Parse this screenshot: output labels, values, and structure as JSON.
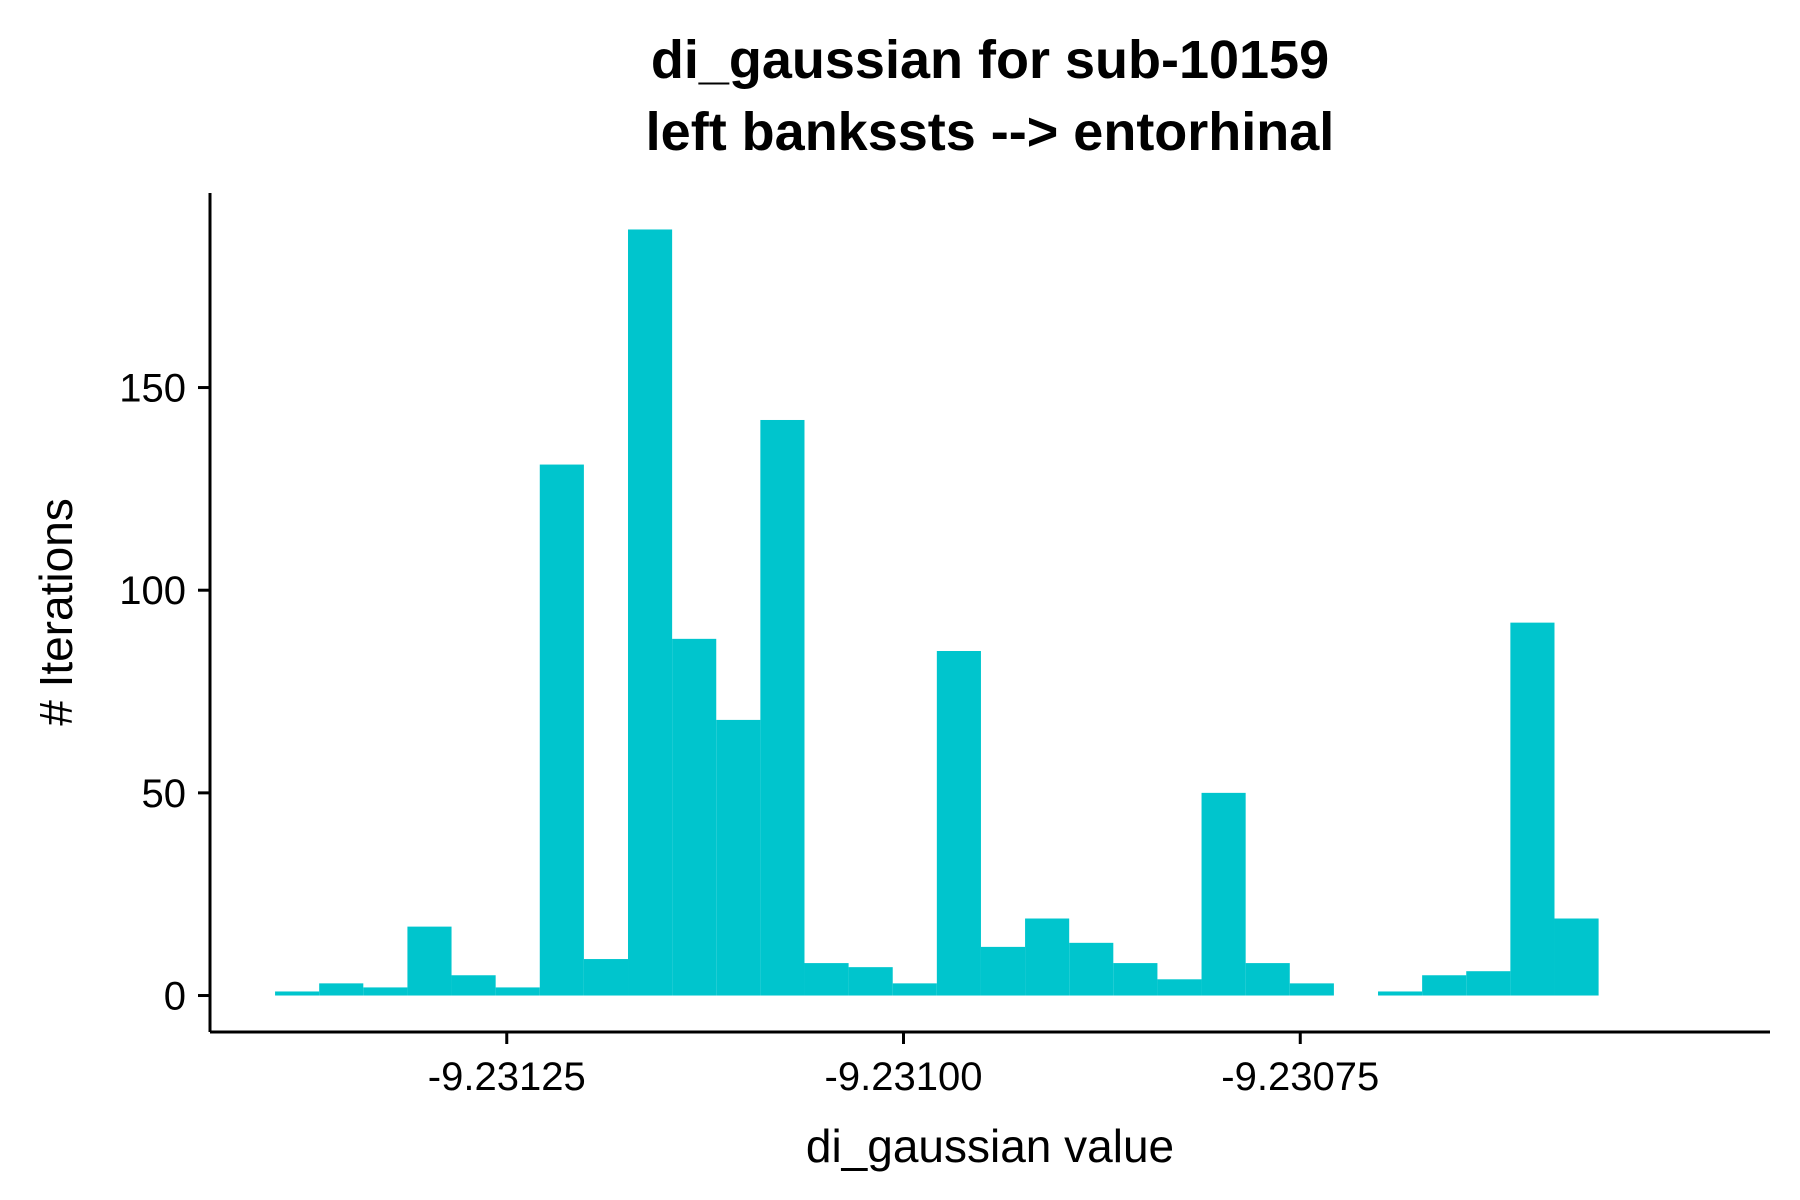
{
  "chart_data": {
    "type": "bar",
    "title_line1": "di_gaussian for sub-10159",
    "title_line2": "left bankssts --> entorhinal",
    "xlabel": "di_gaussian value",
    "ylabel": "# Iterations",
    "bar_color": "#00C5CD",
    "xlim": [
      -9.231437,
      -9.230454
    ],
    "ylim": [
      -9,
      198
    ],
    "x_ticks": [
      -9.23125,
      -9.231,
      -9.23075
    ],
    "x_tick_labels": [
      "-9.23125",
      "-9.23100",
      "-9.23075"
    ],
    "y_ticks": [
      0,
      50,
      100,
      150
    ],
    "y_tick_labels": [
      "0",
      "50",
      "100",
      "150"
    ],
    "bin_width": 2.78e-05,
    "bin_start": -9.231396,
    "values": [
      1,
      3,
      2,
      17,
      5,
      2,
      131,
      9,
      189,
      88,
      68,
      142,
      8,
      7,
      3,
      85,
      12,
      19,
      13,
      8,
      4,
      50,
      8,
      3,
      0,
      1,
      5,
      6,
      92,
      19
    ]
  }
}
